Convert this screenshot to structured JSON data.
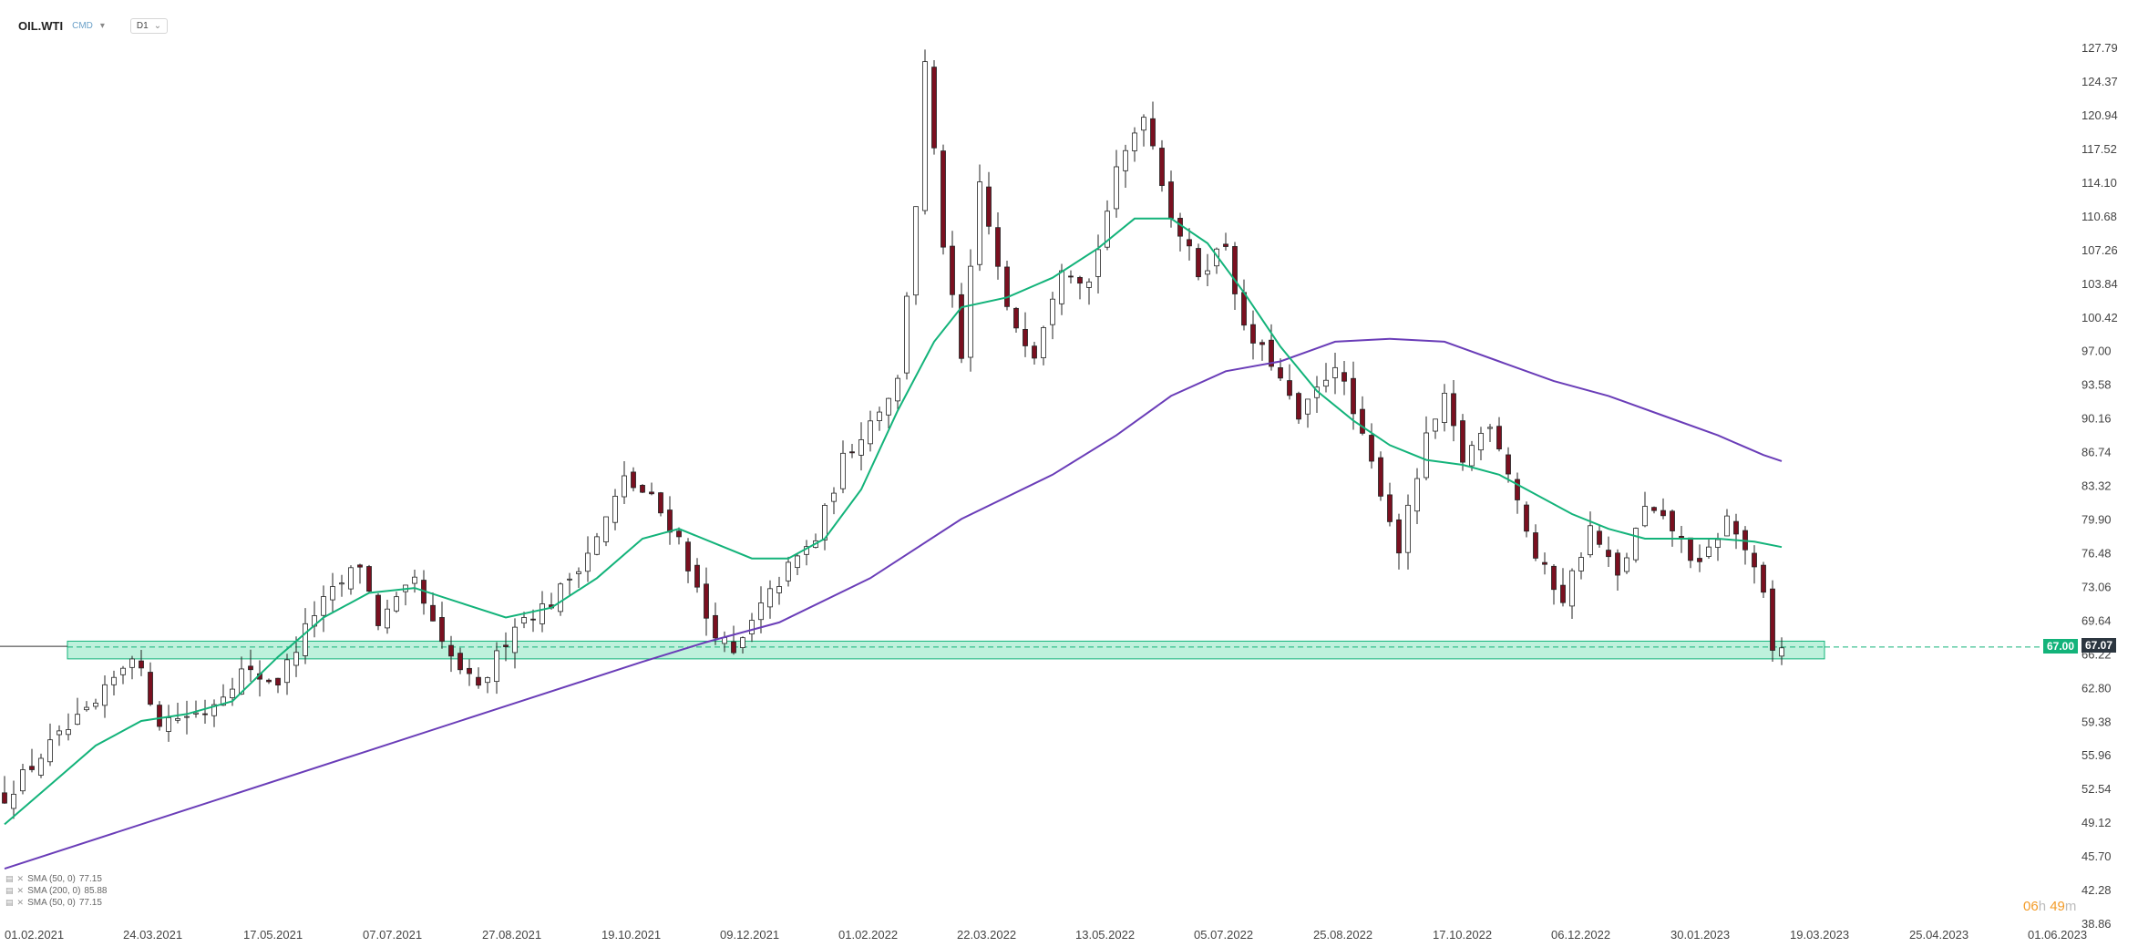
{
  "header": {
    "symbol": "OIL.WTI",
    "market": "CMD",
    "timeframe": "D1"
  },
  "chart_data": {
    "type": "candlestick",
    "y_ticks": [
      "127.79",
      "124.37",
      "120.94",
      "117.52",
      "114.10",
      "110.68",
      "107.26",
      "103.84",
      "100.42",
      "97.00",
      "93.58",
      "90.16",
      "86.74",
      "83.32",
      "79.90",
      "76.48",
      "73.06",
      "69.64",
      "66.22",
      "62.80",
      "59.38",
      "55.96",
      "52.54",
      "49.12",
      "45.70",
      "42.28",
      "38.86"
    ],
    "ylim": [
      38.86,
      127.79
    ],
    "x_ticks": [
      "01.02.2021",
      "24.03.2021",
      "17.05.2021",
      "07.07.2021",
      "27.08.2021",
      "19.10.2021",
      "09.12.2021",
      "01.02.2022",
      "22.03.2022",
      "13.05.2022",
      "05.07.2022",
      "25.08.2022",
      "17.10.2022",
      "06.12.2022",
      "30.01.2023",
      "19.03.2023",
      "25.04.2023",
      "01.06.2023"
    ],
    "close_anchors": [
      [
        0,
        51.8
      ],
      [
        5,
        57.0
      ],
      [
        10,
        61.0
      ],
      [
        14,
        66.5
      ],
      [
        17,
        59.5
      ],
      [
        22,
        60.5
      ],
      [
        26,
        64.5
      ],
      [
        30,
        63.5
      ],
      [
        34,
        70.5
      ],
      [
        39,
        75.5
      ],
      [
        41,
        69.5
      ],
      [
        45,
        73.5
      ],
      [
        48,
        67.0
      ],
      [
        52,
        62.5
      ],
      [
        56,
        69.5
      ],
      [
        60,
        71.5
      ],
      [
        65,
        78.0
      ],
      [
        68,
        84.0
      ],
      [
        71,
        82.0
      ],
      [
        74,
        78.0
      ],
      [
        77,
        70.0
      ],
      [
        80,
        66.0
      ],
      [
        83,
        71.0
      ],
      [
        86,
        75.0
      ],
      [
        89,
        78.0
      ],
      [
        92,
        86.0
      ],
      [
        95,
        90.0
      ],
      [
        98,
        94.0
      ],
      [
        100,
        112.0
      ],
      [
        101,
        126.0
      ],
      [
        103,
        108.0
      ],
      [
        105,
        96.0
      ],
      [
        107,
        114.0
      ],
      [
        110,
        101.0
      ],
      [
        113,
        97.0
      ],
      [
        116,
        106.0
      ],
      [
        119,
        104.0
      ],
      [
        122,
        115.0
      ],
      [
        125,
        121.5
      ],
      [
        128,
        111.0
      ],
      [
        131,
        105.0
      ],
      [
        134,
        108.0
      ],
      [
        136,
        99.0
      ],
      [
        139,
        96.0
      ],
      [
        142,
        90.0
      ],
      [
        146,
        96.0
      ],
      [
        149,
        88.0
      ],
      [
        151,
        83.0
      ],
      [
        153,
        77.0
      ],
      [
        156,
        88.0
      ],
      [
        158,
        92.0
      ],
      [
        160,
        86.0
      ],
      [
        163,
        90.0
      ],
      [
        165,
        85.0
      ],
      [
        168,
        76.0
      ],
      [
        171,
        72.0
      ],
      [
        174,
        79.0
      ],
      [
        177,
        74.0
      ],
      [
        180,
        81.0
      ],
      [
        183,
        79.0
      ],
      [
        186,
        75.0
      ],
      [
        189,
        80.0
      ],
      [
        191,
        77.0
      ],
      [
        193,
        72.0
      ],
      [
        194,
        66.5
      ],
      [
        195,
        67.07
      ]
    ],
    "sma_fast": {
      "name": "SMA (50, 0)",
      "value": "77.15",
      "color": "#13b37a",
      "points": [
        [
          0,
          49.0
        ],
        [
          5,
          53.0
        ],
        [
          10,
          57.0
        ],
        [
          15,
          59.5
        ],
        [
          20,
          60.2
        ],
        [
          25,
          61.5
        ],
        [
          30,
          66.0
        ],
        [
          35,
          70.0
        ],
        [
          40,
          72.5
        ],
        [
          45,
          73.0
        ],
        [
          50,
          71.5
        ],
        [
          55,
          70.0
        ],
        [
          60,
          71.0
        ],
        [
          65,
          74.0
        ],
        [
          70,
          78.0
        ],
        [
          74,
          79.0
        ],
        [
          78,
          77.5
        ],
        [
          82,
          76.0
        ],
        [
          86,
          76.0
        ],
        [
          90,
          78.0
        ],
        [
          94,
          83.0
        ],
        [
          98,
          91.0
        ],
        [
          102,
          98.0
        ],
        [
          105,
          101.5
        ],
        [
          110,
          102.5
        ],
        [
          115,
          104.5
        ],
        [
          120,
          107.5
        ],
        [
          124,
          110.5
        ],
        [
          128,
          110.5
        ],
        [
          132,
          108.0
        ],
        [
          136,
          103.0
        ],
        [
          140,
          97.5
        ],
        [
          144,
          93.0
        ],
        [
          148,
          90.0
        ],
        [
          152,
          87.5
        ],
        [
          156,
          86.0
        ],
        [
          160,
          85.5
        ],
        [
          164,
          84.5
        ],
        [
          168,
          82.5
        ],
        [
          172,
          80.5
        ],
        [
          176,
          79.0
        ],
        [
          180,
          78.0
        ],
        [
          184,
          78.0
        ],
        [
          188,
          78.0
        ],
        [
          192,
          77.7
        ],
        [
          195,
          77.15
        ]
      ]
    },
    "sma_slow": {
      "name": "SMA (200, 0)",
      "value": "85.88",
      "color": "#6a3db8",
      "points": [
        [
          0,
          44.5
        ],
        [
          20,
          50.5
        ],
        [
          40,
          56.5
        ],
        [
          55,
          61.0
        ],
        [
          70,
          65.5
        ],
        [
          77,
          67.5
        ],
        [
          85,
          69.5
        ],
        [
          95,
          74.0
        ],
        [
          105,
          80.0
        ],
        [
          115,
          84.5
        ],
        [
          122,
          88.5
        ],
        [
          128,
          92.5
        ],
        [
          134,
          95.0
        ],
        [
          140,
          96.0
        ],
        [
          146,
          98.0
        ],
        [
          152,
          98.3
        ],
        [
          158,
          98.0
        ],
        [
          164,
          96.0
        ],
        [
          170,
          94.0
        ],
        [
          176,
          92.5
        ],
        [
          182,
          90.5
        ],
        [
          188,
          88.5
        ],
        [
          193,
          86.5
        ],
        [
          195,
          85.88
        ]
      ]
    },
    "sma_fast_2": {
      "name": "SMA (50, 0)",
      "value": "77.15"
    },
    "support_zone": [
      65.8,
      67.6
    ],
    "level_price": "67.00",
    "current_price": "67.07"
  },
  "countdown": {
    "hours": "06",
    "hours_unit": "h",
    "minutes": "49",
    "minutes_unit": "m"
  }
}
